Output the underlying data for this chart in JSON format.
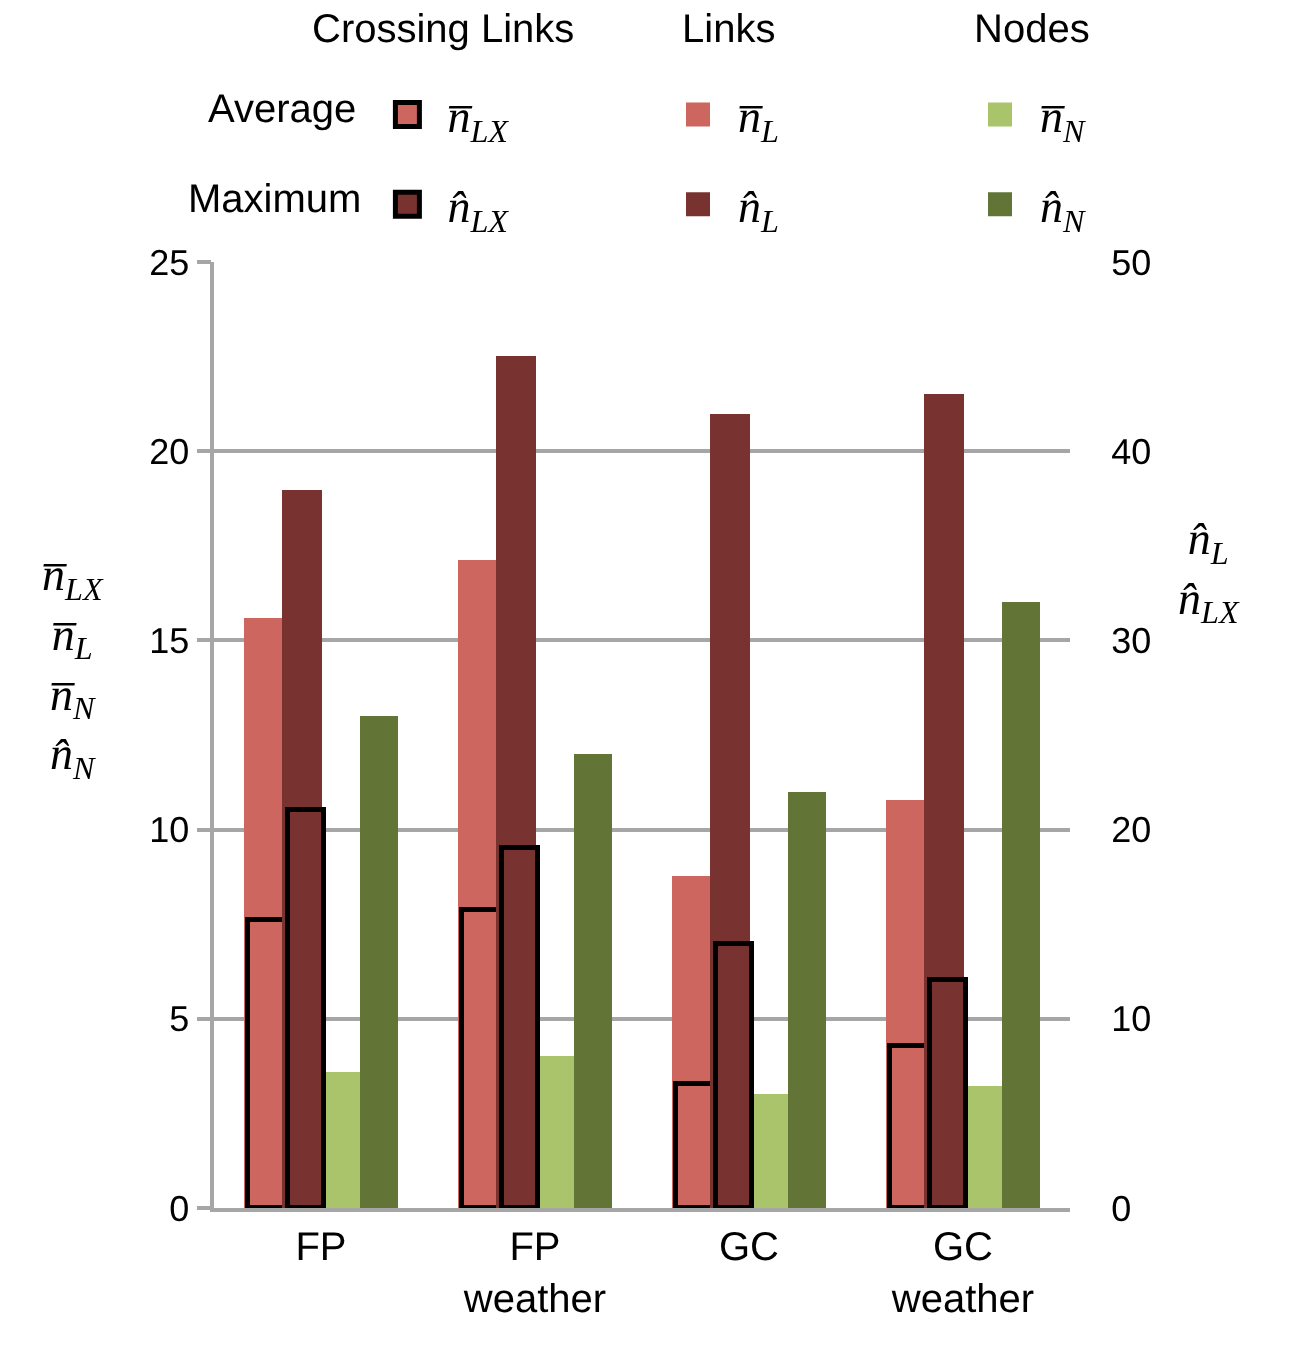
{
  "chart_data": {
    "type": "bar",
    "categories": [
      "FP",
      "FP weather",
      "GC",
      "GC weather"
    ],
    "ylabel": "n̅$_{LX}$\nn̅$_{L}$\nn̅$_{N}$\nn̂$_{N}$",
    "y2label": "n̂$_{L}$\nn̂$_{LX}$",
    "annotations": [
      "Crossing Links",
      "Links",
      "Nodes",
      "Average",
      "Maximum"
    ],
    "ylim": [
      0,
      25
    ],
    "yticks": [
      0,
      5,
      10,
      15,
      20,
      25
    ],
    "y2lim": [
      0,
      50
    ],
    "y2ticks": [
      0,
      10,
      20,
      30,
      40,
      50
    ],
    "grid": "y",
    "legend": "top",
    "series": [
      {
        "name": "n̅$_{L}$",
        "color": "#ce6660",
        "values": [
          15.6,
          17.1,
          8.8,
          10.8
        ]
      },
      {
        "name": "n̂$_{L}$",
        "color": "#78322f",
        "values": [
          38,
          45,
          42,
          43
        ],
        "axis": "y2"
      },
      {
        "name": "n̅$_{N}$",
        "color": "#a9c46a",
        "values": [
          3.6,
          4.0,
          3.0,
          3.2
        ]
      },
      {
        "name": "n̂$_{N}$",
        "color": "#627436",
        "values": [
          13,
          12,
          11,
          16
        ]
      },
      {
        "name": "n̅$_{LX}$",
        "color": "#ce6660",
        "values": [
          7.6,
          7.9,
          3.3,
          4.3
        ]
      },
      {
        "name": "n̂$_{LX}$",
        "color": "#78322f",
        "values": [
          21,
          19,
          14,
          12
        ],
        "axis": "y2"
      }
    ]
  }
}
